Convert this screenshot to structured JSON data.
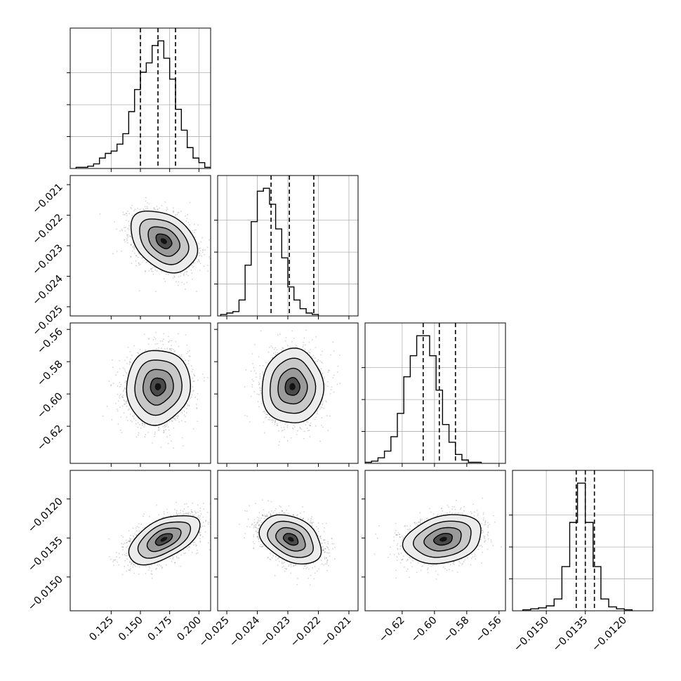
{
  "chart_data": {
    "type": "corner",
    "n_params": 4,
    "grid": true,
    "scatter_color": "#808080",
    "line_color": "#000000",
    "params": [
      {
        "range": [
          0.09,
          0.21
        ],
        "ticks": [
          0.125,
          0.15,
          0.175,
          0.2
        ],
        "tick_labels": [
          "0.125",
          "0.150",
          "0.175",
          "0.200"
        ],
        "quantiles": [
          0.15,
          0.165,
          0.18
        ],
        "hist": {
          "edges_start": 0.095,
          "bin_width": 0.005,
          "counts": [
            1,
            1,
            2,
            4,
            9,
            13,
            15,
            21,
            30,
            49,
            68,
            83,
            91,
            106,
            110,
            95,
            77,
            51,
            33,
            18,
            9,
            5,
            1
          ]
        }
      },
      {
        "range": [
          -0.0253,
          -0.0207
        ],
        "ticks": [
          -0.025,
          -0.024,
          -0.023,
          -0.022,
          -0.021
        ],
        "tick_labels": [
          "−0.025",
          "−0.024",
          "−0.023",
          "−0.022",
          "−0.021"
        ],
        "quantiles": [
          -0.02355,
          -0.02295,
          -0.02215
        ],
        "hist": {
          "edges_start": -0.0252,
          "bin_width": 0.0002,
          "counts": [
            1,
            2,
            3,
            11,
            35,
            65,
            86,
            88,
            77,
            60,
            40,
            20,
            11,
            5,
            2,
            1
          ]
        }
      },
      {
        "range": [
          -0.643,
          -0.556
        ],
        "ticks": [
          -0.62,
          -0.6,
          -0.58,
          -0.56
        ],
        "tick_labels": [
          "−0.62",
          "−0.60",
          "−0.58",
          "−0.56"
        ],
        "quantiles": [
          -0.607,
          -0.597,
          -0.587
        ],
        "hist": {
          "edges_start": -0.643,
          "bin_width": 0.004,
          "counts": [
            1,
            2,
            5,
            11,
            24,
            45,
            78,
            97,
            115,
            115,
            97,
            66,
            35,
            19,
            8,
            3,
            1,
            1
          ]
        }
      },
      {
        "range": [
          -0.0163,
          -0.0109
        ],
        "ticks": [
          -0.015,
          -0.0135,
          -0.012
        ],
        "tick_labels": [
          "−0.0150",
          "−0.0135",
          "−0.0120"
        ],
        "quantiles": [
          -0.01385,
          -0.0135,
          -0.01315
        ],
        "hist": {
          "edges_start": -0.0159,
          "bin_width": 0.0003,
          "counts": [
            1,
            2,
            3,
            5,
            12,
            45,
            90,
            130,
            90,
            45,
            12,
            4,
            2,
            1
          ]
        }
      }
    ],
    "pairs": [
      {
        "x_param": 0,
        "y_param": 1,
        "mean": [
          0.17,
          -0.02285
        ],
        "sigma": [
          0.0135,
          0.00048
        ],
        "rho": -0.35
      },
      {
        "x_param": 0,
        "y_param": 2,
        "mean": [
          0.165,
          -0.5955
        ],
        "sigma": [
          0.013,
          0.011
        ],
        "rho": 0.05
      },
      {
        "x_param": 0,
        "y_param": 3,
        "mean": [
          0.17,
          -0.01355
        ],
        "sigma": [
          0.0145,
          0.00045
        ],
        "rho": 0.55
      },
      {
        "x_param": 1,
        "y_param": 2,
        "mean": [
          -0.02285,
          -0.5955
        ],
        "sigma": [
          0.00048,
          0.011
        ],
        "rho": 0.02
      },
      {
        "x_param": 1,
        "y_param": 3,
        "mean": [
          -0.0229,
          -0.01355
        ],
        "sigma": [
          0.00048,
          0.00045
        ],
        "rho": -0.35
      },
      {
        "x_param": 2,
        "y_param": 3,
        "mean": [
          -0.5945,
          -0.01355
        ],
        "sigma": [
          0.0115,
          0.00045
        ],
        "rho": 0.25
      }
    ]
  }
}
